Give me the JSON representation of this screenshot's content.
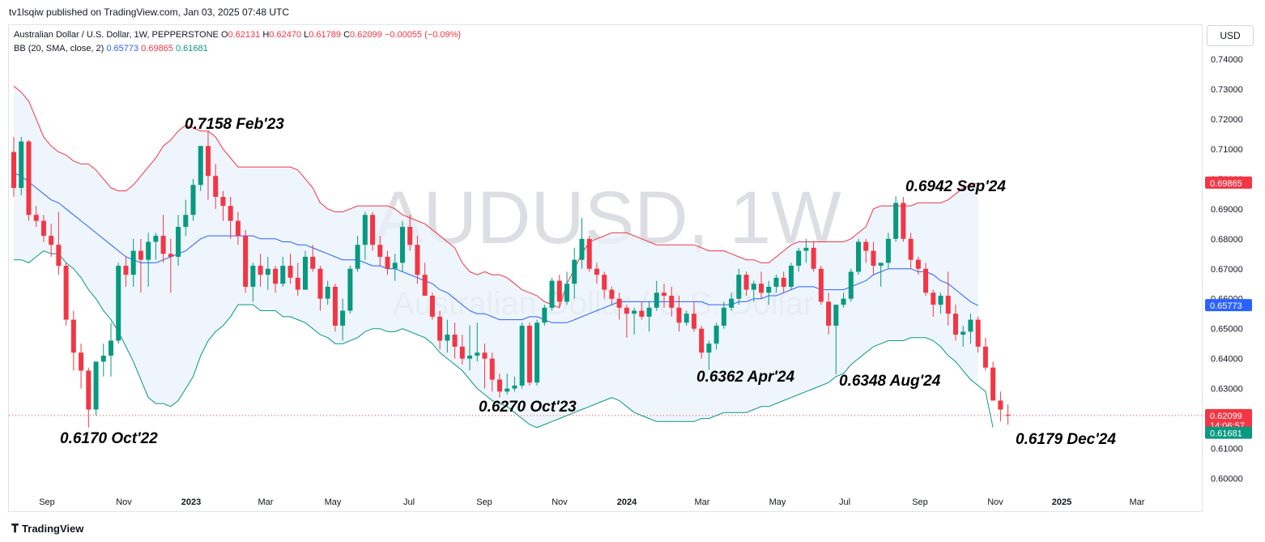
{
  "header": {
    "published": "tv1lsqiw published on TradingView.com, Jan 03, 2025 07:48 UTC"
  },
  "legend": {
    "symbol": "Australian Dollar / U.S. Dollar, 1W, PEPPERSTONE",
    "o_label": "O",
    "o": "0.62131",
    "h_label": "H",
    "h": "0.62470",
    "l_label": "L",
    "l": "0.61789",
    "c_label": "C",
    "c": "0.62099",
    "change": "−0.00055 (−0.09%)",
    "bb_label": "BB (20, SMA, close, 2)",
    "bb_mid": "0.65773",
    "bb_upper": "0.69865",
    "bb_lower": "0.61681"
  },
  "currency_button": "USD",
  "footer": {
    "brand": "TradingView"
  },
  "watermark": {
    "ticker": "AUDUSD, 1W",
    "name": "Australian Dollar / U.S. Dollar"
  },
  "chart_data": {
    "type": "candlestick",
    "instrument": "AUDUSD",
    "interval": "1W",
    "ylim": [
      0.596,
      0.7453
    ],
    "y_ticks": [
      "0.74000",
      "0.73000",
      "0.72000",
      "0.71000",
      "0.70000",
      "0.69000",
      "0.68000",
      "0.67000",
      "0.66000",
      "0.65000",
      "0.64000",
      "0.63000",
      "0.62000",
      "0.61000",
      "0.60000"
    ],
    "x_ticks": [
      "Sep",
      "Nov",
      "2023",
      "Mar",
      "May",
      "Jul",
      "Sep",
      "Nov",
      "2024",
      "Mar",
      "May",
      "Jul",
      "Sep",
      "Nov",
      "2025",
      "Mar"
    ],
    "candles": [
      [
        0.709,
        0.714,
        0.694,
        0.697
      ],
      [
        0.697,
        0.714,
        0.6945,
        0.7125
      ],
      [
        0.7125,
        0.713,
        0.686,
        0.688
      ],
      [
        0.688,
        0.691,
        0.684,
        0.686
      ],
      [
        0.686,
        0.688,
        0.679,
        0.681
      ],
      [
        0.681,
        0.685,
        0.674,
        0.678
      ],
      [
        0.678,
        0.689,
        0.668,
        0.671
      ],
      [
        0.671,
        0.672,
        0.651,
        0.653
      ],
      [
        0.653,
        0.656,
        0.636,
        0.642
      ],
      [
        0.642,
        0.645,
        0.63,
        0.636
      ],
      [
        0.636,
        0.637,
        0.617,
        0.623
      ],
      [
        0.623,
        0.638,
        0.621,
        0.639
      ],
      [
        0.639,
        0.645,
        0.634,
        0.641
      ],
      [
        0.641,
        0.652,
        0.634,
        0.646
      ],
      [
        0.646,
        0.672,
        0.645,
        0.671
      ],
      [
        0.671,
        0.674,
        0.664,
        0.668
      ],
      [
        0.668,
        0.68,
        0.664,
        0.676
      ],
      [
        0.676,
        0.68,
        0.662,
        0.673
      ],
      [
        0.673,
        0.682,
        0.664,
        0.679
      ],
      [
        0.679,
        0.682,
        0.673,
        0.681
      ],
      [
        0.681,
        0.688,
        0.672,
        0.675
      ],
      [
        0.675,
        0.68,
        0.662,
        0.674
      ],
      [
        0.674,
        0.688,
        0.671,
        0.684
      ],
      [
        0.684,
        0.693,
        0.681,
        0.688
      ],
      [
        0.688,
        0.7,
        0.686,
        0.698
      ],
      [
        0.698,
        0.711,
        0.696,
        0.711
      ],
      [
        0.711,
        0.716,
        0.693,
        0.701
      ],
      [
        0.701,
        0.705,
        0.69,
        0.694
      ],
      [
        0.694,
        0.696,
        0.686,
        0.691
      ],
      [
        0.691,
        0.694,
        0.68,
        0.686
      ],
      [
        0.686,
        0.689,
        0.678,
        0.681
      ],
      [
        0.681,
        0.683,
        0.662,
        0.664
      ],
      [
        0.664,
        0.672,
        0.659,
        0.671
      ],
      [
        0.671,
        0.675,
        0.664,
        0.668
      ],
      [
        0.668,
        0.674,
        0.663,
        0.67
      ],
      [
        0.67,
        0.671,
        0.662,
        0.665
      ],
      [
        0.665,
        0.674,
        0.664,
        0.671
      ],
      [
        0.671,
        0.675,
        0.665,
        0.667
      ],
      [
        0.667,
        0.672,
        0.661,
        0.663
      ],
      [
        0.663,
        0.676,
        0.663,
        0.674
      ],
      [
        0.674,
        0.678,
        0.669,
        0.67
      ],
      [
        0.67,
        0.671,
        0.656,
        0.66
      ],
      [
        0.66,
        0.666,
        0.658,
        0.664
      ],
      [
        0.664,
        0.665,
        0.649,
        0.651
      ],
      [
        0.651,
        0.66,
        0.646,
        0.656
      ],
      [
        0.656,
        0.671,
        0.655,
        0.67
      ],
      [
        0.67,
        0.681,
        0.669,
        0.678
      ],
      [
        0.678,
        0.689,
        0.673,
        0.688
      ],
      [
        0.688,
        0.689,
        0.676,
        0.678
      ],
      [
        0.678,
        0.681,
        0.671,
        0.674
      ],
      [
        0.674,
        0.676,
        0.668,
        0.67
      ],
      [
        0.67,
        0.675,
        0.666,
        0.672
      ],
      [
        0.672,
        0.686,
        0.669,
        0.684
      ],
      [
        0.684,
        0.688,
        0.676,
        0.678
      ],
      [
        0.678,
        0.681,
        0.665,
        0.668
      ],
      [
        0.668,
        0.672,
        0.661,
        0.661
      ],
      [
        0.661,
        0.662,
        0.653,
        0.654
      ],
      [
        0.654,
        0.656,
        0.643,
        0.646
      ],
      [
        0.646,
        0.653,
        0.642,
        0.648
      ],
      [
        0.648,
        0.652,
        0.64,
        0.644
      ],
      [
        0.644,
        0.648,
        0.638,
        0.64
      ],
      [
        0.64,
        0.651,
        0.636,
        0.641
      ],
      [
        0.641,
        0.652,
        0.639,
        0.642
      ],
      [
        0.642,
        0.645,
        0.63,
        0.64
      ],
      [
        0.64,
        0.642,
        0.629,
        0.633
      ],
      [
        0.633,
        0.635,
        0.627,
        0.629
      ],
      [
        0.629,
        0.635,
        0.628,
        0.63
      ],
      [
        0.63,
        0.634,
        0.629,
        0.631
      ],
      [
        0.631,
        0.652,
        0.63,
        0.651
      ],
      [
        0.651,
        0.652,
        0.631,
        0.632
      ],
      [
        0.632,
        0.653,
        0.631,
        0.652
      ],
      [
        0.652,
        0.658,
        0.651,
        0.657
      ],
      [
        0.657,
        0.667,
        0.656,
        0.666
      ],
      [
        0.666,
        0.668,
        0.657,
        0.659
      ],
      [
        0.659,
        0.669,
        0.658,
        0.665
      ],
      [
        0.665,
        0.677,
        0.66,
        0.673
      ],
      [
        0.673,
        0.687,
        0.67,
        0.68
      ],
      [
        0.68,
        0.681,
        0.669,
        0.67
      ],
      [
        0.67,
        0.672,
        0.665,
        0.668
      ],
      [
        0.668,
        0.669,
        0.66,
        0.663
      ],
      [
        0.663,
        0.664,
        0.658,
        0.66
      ],
      [
        0.66,
        0.662,
        0.653,
        0.657
      ],
      [
        0.657,
        0.658,
        0.647,
        0.655
      ],
      [
        0.655,
        0.657,
        0.648,
        0.656
      ],
      [
        0.656,
        0.659,
        0.653,
        0.654
      ],
      [
        0.654,
        0.659,
        0.649,
        0.657
      ],
      [
        0.657,
        0.666,
        0.656,
        0.662
      ],
      [
        0.662,
        0.665,
        0.657,
        0.661
      ],
      [
        0.661,
        0.664,
        0.654,
        0.657
      ],
      [
        0.657,
        0.661,
        0.649,
        0.652
      ],
      [
        0.652,
        0.656,
        0.651,
        0.655
      ],
      [
        0.655,
        0.659,
        0.649,
        0.65
      ],
      [
        0.65,
        0.651,
        0.64,
        0.642
      ],
      [
        0.642,
        0.646,
        0.6362,
        0.645
      ],
      [
        0.645,
        0.652,
        0.643,
        0.651
      ],
      [
        0.651,
        0.659,
        0.65,
        0.657
      ],
      [
        0.657,
        0.662,
        0.656,
        0.66
      ],
      [
        0.66,
        0.67,
        0.658,
        0.668
      ],
      [
        0.668,
        0.669,
        0.661,
        0.663
      ],
      [
        0.663,
        0.666,
        0.659,
        0.665
      ],
      [
        0.665,
        0.669,
        0.66,
        0.662
      ],
      [
        0.662,
        0.666,
        0.658,
        0.664
      ],
      [
        0.664,
        0.668,
        0.662,
        0.667
      ],
      [
        0.667,
        0.669,
        0.662,
        0.664
      ],
      [
        0.664,
        0.672,
        0.663,
        0.671
      ],
      [
        0.671,
        0.677,
        0.669,
        0.676
      ],
      [
        0.676,
        0.68,
        0.672,
        0.677
      ],
      [
        0.677,
        0.679,
        0.669,
        0.67
      ],
      [
        0.67,
        0.671,
        0.658,
        0.659
      ],
      [
        0.659,
        0.662,
        0.648,
        0.651
      ],
      [
        0.651,
        0.657,
        0.6348,
        0.658
      ],
      [
        0.658,
        0.662,
        0.657,
        0.66
      ],
      [
        0.66,
        0.67,
        0.659,
        0.669
      ],
      [
        0.669,
        0.68,
        0.668,
        0.679
      ],
      [
        0.679,
        0.68,
        0.672,
        0.676
      ],
      [
        0.676,
        0.679,
        0.668,
        0.671
      ],
      [
        0.671,
        0.672,
        0.664,
        0.672
      ],
      [
        0.672,
        0.682,
        0.67,
        0.68
      ],
      [
        0.68,
        0.6942,
        0.679,
        0.692
      ],
      [
        0.692,
        0.694,
        0.679,
        0.68
      ],
      [
        0.68,
        0.682,
        0.67,
        0.673
      ],
      [
        0.673,
        0.674,
        0.668,
        0.67
      ],
      [
        0.67,
        0.672,
        0.661,
        0.662
      ],
      [
        0.662,
        0.663,
        0.654,
        0.658
      ],
      [
        0.658,
        0.662,
        0.655,
        0.661
      ],
      [
        0.661,
        0.669,
        0.651,
        0.655
      ],
      [
        0.655,
        0.658,
        0.646,
        0.648
      ],
      [
        0.648,
        0.651,
        0.644,
        0.649
      ],
      [
        0.649,
        0.655,
        0.645,
        0.653
      ],
      [
        0.653,
        0.654,
        0.642,
        0.644
      ],
      [
        0.644,
        0.647,
        0.636,
        0.637
      ],
      [
        0.637,
        0.639,
        0.626,
        0.626
      ],
      [
        0.626,
        0.629,
        0.619,
        0.623
      ],
      [
        0.6213,
        0.6247,
        0.6179,
        0.621
      ]
    ],
    "bb_upper": [
      0.731,
      0.729,
      0.726,
      0.72,
      0.714,
      0.711,
      0.709,
      0.708,
      0.706,
      0.705,
      0.705,
      0.703,
      0.7,
      0.697,
      0.696,
      0.696,
      0.698,
      0.701,
      0.704,
      0.707,
      0.711,
      0.713,
      0.716,
      0.718,
      0.717,
      0.716,
      0.716,
      0.714,
      0.71,
      0.707,
      0.704,
      0.704,
      0.704,
      0.704,
      0.704,
      0.704,
      0.704,
      0.704,
      0.703,
      0.7,
      0.697,
      0.692,
      0.69,
      0.689,
      0.689,
      0.69,
      0.691,
      0.691,
      0.691,
      0.691,
      0.691,
      0.69,
      0.688,
      0.687,
      0.686,
      0.685,
      0.683,
      0.681,
      0.679,
      0.677,
      0.672,
      0.669,
      0.668,
      0.669,
      0.668,
      0.668,
      0.667,
      0.665,
      0.663,
      0.662,
      0.661,
      0.659,
      0.658,
      0.657,
      0.665,
      0.67,
      0.675,
      0.679,
      0.68,
      0.681,
      0.682,
      0.682,
      0.682,
      0.681,
      0.68,
      0.679,
      0.678,
      0.678,
      0.678,
      0.678,
      0.678,
      0.678,
      0.677,
      0.676,
      0.676,
      0.676,
      0.675,
      0.674,
      0.673,
      0.673,
      0.672,
      0.672,
      0.674,
      0.676,
      0.678,
      0.679,
      0.679,
      0.679,
      0.679,
      0.679,
      0.679,
      0.679,
      0.68,
      0.682,
      0.684,
      0.69,
      0.691,
      0.691,
      0.691,
      0.691,
      0.691,
      0.692,
      0.692,
      0.692,
      0.692,
      0.693,
      0.695,
      0.697,
      0.698,
      0.6986
    ],
    "bb_mid": [
      0.702,
      0.701,
      0.699,
      0.697,
      0.695,
      0.693,
      0.692,
      0.69,
      0.688,
      0.686,
      0.684,
      0.682,
      0.68,
      0.678,
      0.676,
      0.674,
      0.673,
      0.672,
      0.672,
      0.672,
      0.673,
      0.674,
      0.675,
      0.676,
      0.678,
      0.68,
      0.681,
      0.681,
      0.681,
      0.681,
      0.681,
      0.681,
      0.681,
      0.68,
      0.68,
      0.68,
      0.679,
      0.679,
      0.678,
      0.678,
      0.677,
      0.676,
      0.675,
      0.674,
      0.673,
      0.673,
      0.673,
      0.672,
      0.671,
      0.671,
      0.67,
      0.67,
      0.669,
      0.668,
      0.667,
      0.666,
      0.665,
      0.663,
      0.662,
      0.66,
      0.658,
      0.656,
      0.655,
      0.655,
      0.654,
      0.653,
      0.653,
      0.653,
      0.653,
      0.654,
      0.654,
      0.653,
      0.652,
      0.652,
      0.652,
      0.653,
      0.654,
      0.655,
      0.656,
      0.657,
      0.658,
      0.659,
      0.659,
      0.659,
      0.659,
      0.659,
      0.659,
      0.659,
      0.659,
      0.659,
      0.659,
      0.659,
      0.659,
      0.658,
      0.658,
      0.658,
      0.658,
      0.659,
      0.659,
      0.66,
      0.66,
      0.661,
      0.661,
      0.662,
      0.663,
      0.664,
      0.664,
      0.664,
      0.663,
      0.663,
      0.663,
      0.663,
      0.664,
      0.665,
      0.666,
      0.668,
      0.669,
      0.67,
      0.67,
      0.67,
      0.67,
      0.669,
      0.669,
      0.668,
      0.666,
      0.665,
      0.663,
      0.661,
      0.659,
      0.6577
    ],
    "bb_lower": [
      0.673,
      0.673,
      0.672,
      0.674,
      0.676,
      0.675,
      0.675,
      0.672,
      0.67,
      0.667,
      0.663,
      0.66,
      0.656,
      0.653,
      0.649,
      0.644,
      0.639,
      0.633,
      0.627,
      0.625,
      0.625,
      0.624,
      0.626,
      0.63,
      0.634,
      0.641,
      0.646,
      0.649,
      0.651,
      0.654,
      0.658,
      0.658,
      0.658,
      0.656,
      0.656,
      0.656,
      0.654,
      0.654,
      0.653,
      0.652,
      0.65,
      0.648,
      0.647,
      0.645,
      0.645,
      0.646,
      0.647,
      0.649,
      0.65,
      0.65,
      0.649,
      0.649,
      0.65,
      0.649,
      0.648,
      0.647,
      0.645,
      0.642,
      0.64,
      0.638,
      0.636,
      0.633,
      0.63,
      0.628,
      0.626,
      0.625,
      0.624,
      0.622,
      0.62,
      0.618,
      0.617,
      0.618,
      0.619,
      0.62,
      0.621,
      0.622,
      0.623,
      0.624,
      0.625,
      0.626,
      0.627,
      0.626,
      0.624,
      0.622,
      0.621,
      0.62,
      0.619,
      0.619,
      0.619,
      0.619,
      0.619,
      0.619,
      0.62,
      0.62,
      0.621,
      0.622,
      0.622,
      0.622,
      0.622,
      0.623,
      0.624,
      0.624,
      0.625,
      0.626,
      0.627,
      0.628,
      0.629,
      0.63,
      0.631,
      0.632,
      0.634,
      0.635,
      0.638,
      0.64,
      0.642,
      0.644,
      0.645,
      0.646,
      0.646,
      0.646,
      0.647,
      0.647,
      0.647,
      0.646,
      0.644,
      0.641,
      0.639,
      0.636,
      0.633,
      0.631,
      0.629,
      0.617
    ],
    "last_price": 0.62099,
    "last_price_label": "0.62099",
    "countdown": "14:06:57",
    "bb_upper_label": "0.69865",
    "bb_mid_label": "0.65773",
    "bb_lower_label": "0.61681",
    "annotations": [
      {
        "text": "0.7158 Feb'23",
        "value": 0.7158,
        "candle": 26
      },
      {
        "text": "0.6942 Sep'24",
        "value": 0.6942,
        "candle": 118
      },
      {
        "text": "0.6362 Apr'24",
        "value": 0.6362,
        "candle": 93
      },
      {
        "text": "0.6348 Aug'24",
        "value": 0.6348,
        "candle": 110
      },
      {
        "text": "0.6270 Oct'23",
        "value": 0.627,
        "candle": 65
      },
      {
        "text": "0.6170 Oct'22",
        "value": 0.617,
        "candle": 10
      },
      {
        "text": "0.6179 Dec'24",
        "value": 0.6179,
        "candle": 131
      }
    ],
    "colors": {
      "up": "#089981",
      "down": "#f23645",
      "bb_upper": "#f23645",
      "bb_mid": "#2962ff",
      "bb_lower": "#089981",
      "bb_fill": "#e8f1fb"
    }
  }
}
